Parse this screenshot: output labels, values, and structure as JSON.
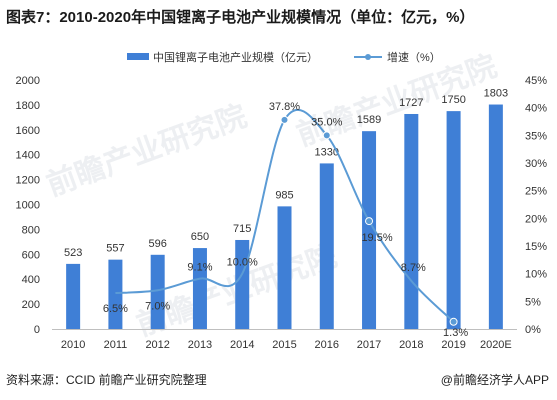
{
  "title": "图表7：2010-2020年中国锂离子电池产业规模情况（单位：亿元，%）",
  "colors": {
    "bar": "#3f7fd6",
    "line": "#5b9bd5",
    "axis": "#bfbfbf",
    "text": "#333333",
    "watermark": "#dfe3e8"
  },
  "watermark": "前瞻产业研究院",
  "footer": {
    "source": "资料来源：CCID 前瞻产业研究院整理",
    "credit": "@前瞻经济学人APP"
  },
  "chart_data": {
    "type": "bar",
    "categories": [
      "2010",
      "2011",
      "2012",
      "2013",
      "2014",
      "2015",
      "2016",
      "2017",
      "2018",
      "2019",
      "2020E"
    ],
    "series": [
      {
        "name": "中国锂离子电池产业规模（亿元）",
        "type": "bar",
        "axis": "left",
        "values": [
          523,
          557,
          596,
          650,
          715,
          985,
          1330,
          1589,
          1727,
          1750,
          1803
        ],
        "labels": [
          "523",
          "557",
          "596",
          "650",
          "715",
          "985",
          "1330",
          "1589",
          "1727",
          "1750",
          "1803"
        ]
      },
      {
        "name": "增速（%）",
        "type": "line",
        "axis": "right",
        "values": [
          null,
          6.5,
          7.0,
          9.1,
          10.0,
          37.8,
          35.0,
          19.5,
          8.7,
          1.3,
          null
        ],
        "labels": [
          "",
          "6.5%",
          "7.0%",
          "9.1%",
          "10.0%",
          "37.8%",
          "35.0%",
          "19.5%",
          "8.7%",
          "1.3%",
          ""
        ]
      }
    ],
    "y_left": {
      "min": 0,
      "max": 2000,
      "ticks": [
        "0",
        "200",
        "400",
        "600",
        "800",
        "1000",
        "1200",
        "1400",
        "1600",
        "1800",
        "2000"
      ]
    },
    "y_right": {
      "min": 0,
      "max": 45,
      "ticks": [
        "0%",
        "5%",
        "10%",
        "15%",
        "20%",
        "25%",
        "30%",
        "35%",
        "40%",
        "45%"
      ]
    },
    "legend": {
      "placement": "top-center",
      "items": [
        "中国锂离子电池产业规模（亿元）",
        "增速（%）"
      ]
    },
    "grid": false
  }
}
